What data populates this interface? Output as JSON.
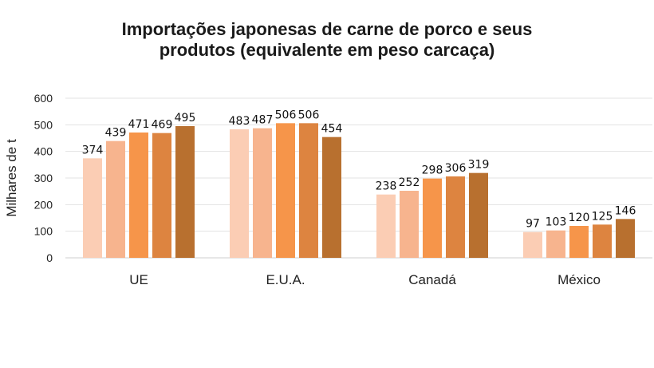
{
  "chart_data": {
    "type": "bar",
    "title_lines": [
      "Importações japonesas de carne de porco e seus",
      "produtos (equivalente em peso carcaça)"
    ],
    "xlabel": "",
    "ylabel": "Milhares de t",
    "ylim": [
      0,
      600
    ],
    "yticks": [
      0,
      100,
      200,
      300,
      400,
      500,
      600
    ],
    "grid": true,
    "legend": "none",
    "categories": [
      "UE",
      "E.U.A.",
      "Canadá",
      "México"
    ],
    "series": [
      {
        "color": "#fbcdb4",
        "values": [
          374,
          483,
          238,
          97
        ]
      },
      {
        "color": "#f7b48e",
        "values": [
          439,
          487,
          252,
          103
        ]
      },
      {
        "color": "#f6954a",
        "values": [
          471,
          506,
          298,
          120
        ]
      },
      {
        "color": "#dd8440",
        "values": [
          469,
          506,
          306,
          125
        ]
      },
      {
        "color": "#b8702f",
        "values": [
          495,
          454,
          319,
          146
        ]
      }
    ]
  }
}
